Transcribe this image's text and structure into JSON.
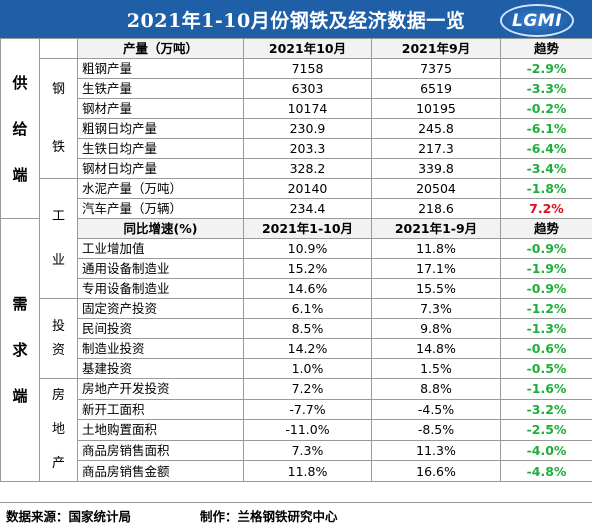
{
  "title": "2021年1-10月份钢铁及经济数据一览",
  "logo_text": "LGMI",
  "sections": {
    "supply": "供给端",
    "demand": "需求端"
  },
  "groups": {
    "steel": "钢铁",
    "industry": "工业",
    "investment": "投资",
    "realestate": "房地产"
  },
  "header1": {
    "name": "产量（万吨）",
    "c1": "2021年10月",
    "c2": "2021年9月",
    "trend": "趋势"
  },
  "header2": {
    "name": "同比增速(%)",
    "c1": "2021年1-10月",
    "c2": "2021年1-9月",
    "trend": "趋势"
  },
  "rows": [
    {
      "name": "粗钢产量",
      "v1": "7158",
      "v2": "7375",
      "trend": "-2.9%",
      "dir": "down"
    },
    {
      "name": "生铁产量",
      "v1": "6303",
      "v2": "6519",
      "trend": "-3.3%",
      "dir": "down"
    },
    {
      "name": "钢材产量",
      "v1": "10174",
      "v2": "10195",
      "trend": "-0.2%",
      "dir": "down"
    },
    {
      "name": "粗钢日均产量",
      "v1": "230.9",
      "v2": "245.8",
      "trend": "-6.1%",
      "dir": "down"
    },
    {
      "name": "生铁日均产量",
      "v1": "203.3",
      "v2": "217.3",
      "trend": "-6.4%",
      "dir": "down"
    },
    {
      "name": "钢材日均产量",
      "v1": "328.2",
      "v2": "339.8",
      "trend": "-3.4%",
      "dir": "down"
    },
    {
      "name": "水泥产量（万吨）",
      "v1": "20140",
      "v2": "20504",
      "trend": "-1.8%",
      "dir": "down"
    },
    {
      "name": "汽车产量（万辆）",
      "v1": "234.4",
      "v2": "218.6",
      "trend": "7.2%",
      "dir": "up"
    },
    {
      "name": "工业增加值",
      "v1": "10.9%",
      "v2": "11.8%",
      "trend": "-0.9%",
      "dir": "down"
    },
    {
      "name": "通用设备制造业",
      "v1": "15.2%",
      "v2": "17.1%",
      "trend": "-1.9%",
      "dir": "down"
    },
    {
      "name": "专用设备制造业",
      "v1": "14.6%",
      "v2": "15.5%",
      "trend": "-0.9%",
      "dir": "down"
    },
    {
      "name": "固定资产投资",
      "v1": "6.1%",
      "v2": "7.3%",
      "trend": "-1.2%",
      "dir": "down"
    },
    {
      "name": "民间投资",
      "v1": "8.5%",
      "v2": "9.8%",
      "trend": "-1.3%",
      "dir": "down"
    },
    {
      "name": "制造业投资",
      "v1": "14.2%",
      "v2": "14.8%",
      "trend": "-0.6%",
      "dir": "down"
    },
    {
      "name": "基建投资",
      "v1": "1.0%",
      "v2": "1.5%",
      "trend": "-0.5%",
      "dir": "down"
    },
    {
      "name": "房地产开发投资",
      "v1": "7.2%",
      "v2": "8.8%",
      "trend": "-1.6%",
      "dir": "down"
    },
    {
      "name": "新开工面积",
      "v1": "-7.7%",
      "v2": "-4.5%",
      "trend": "-3.2%",
      "dir": "down"
    },
    {
      "name": "土地购置面积",
      "v1": "-11.0%",
      "v2": "-8.5%",
      "trend": "-2.5%",
      "dir": "down"
    },
    {
      "name": "商品房销售面积",
      "v1": "7.3%",
      "v2": "11.3%",
      "trend": "-4.0%",
      "dir": "down"
    },
    {
      "name": "商品房销售金额",
      "v1": "11.8%",
      "v2": "16.6%",
      "trend": "-4.8%",
      "dir": "down"
    }
  ],
  "colors": {
    "title_bg": "#1f5fa8",
    "up": "#e0101a",
    "down": "#1fae3a"
  },
  "footer": {
    "source": "数据来源：国家统计局",
    "maker": "制作：兰格钢铁研究中心"
  }
}
